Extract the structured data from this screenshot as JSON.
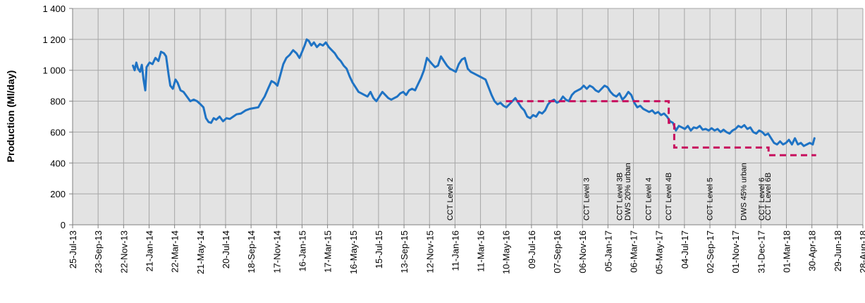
{
  "chart_data": {
    "type": "line",
    "title": "",
    "xlabel": "",
    "ylabel": "Production (Ml/day)",
    "ylim": [
      0,
      1400
    ],
    "xlim": [
      "2013-07-25",
      "2018-08-28"
    ],
    "grid": true,
    "y_ticks": [
      "0",
      "200",
      "400",
      "600",
      "800",
      "1 000",
      "1 200",
      "1 400"
    ],
    "x_ticks": [
      "25-Jul-13",
      "23-Sep-13",
      "22-Nov-13",
      "21-Jan-14",
      "22-Mar-14",
      "21-May-14",
      "20-Jul-14",
      "18-Sep-14",
      "17-Nov-14",
      "16-Jan-15",
      "17-Mar-15",
      "16-May-15",
      "15-Jul-15",
      "13-Sep-15",
      "12-Nov-15",
      "11-Jan-16",
      "11-Mar-16",
      "10-May-16",
      "09-Jul-16",
      "07-Sep-16",
      "06-Nov-16",
      "05-Jan-17",
      "06-Mar-17",
      "05-May-17",
      "04-Jul-17",
      "02-Sep-17",
      "01-Nov-17",
      "31-Dec-17",
      "01-Mar-18",
      "30-Apr-18",
      "29-Jun-18",
      "28-Aug-18"
    ],
    "colors": {
      "production": "#1f73c4",
      "target": "#c8105f",
      "plot_bg": "#e3e3e3",
      "grid": "#a6a6a6"
    },
    "series": [
      {
        "kind": "line",
        "points": [
          [
            "2013-12-14",
            1030
          ],
          [
            "2013-12-18",
            1000
          ],
          [
            "2013-12-22",
            1050
          ],
          [
            "2013-12-26",
            1010
          ],
          [
            "2013-12-31",
            990
          ],
          [
            "2014-01-04",
            1035
          ],
          [
            "2014-01-08",
            940
          ],
          [
            "2014-01-12",
            870
          ],
          [
            "2014-01-15",
            1020
          ],
          [
            "2014-01-22",
            1050
          ],
          [
            "2014-01-29",
            1040
          ],
          [
            "2014-02-05",
            1080
          ],
          [
            "2014-02-12",
            1060
          ],
          [
            "2014-02-18",
            1120
          ],
          [
            "2014-02-25",
            1110
          ],
          [
            "2014-03-02",
            1090
          ],
          [
            "2014-03-08",
            970
          ],
          [
            "2014-03-12",
            900
          ],
          [
            "2014-03-18",
            880
          ],
          [
            "2014-03-24",
            940
          ],
          [
            "2014-03-29",
            920
          ],
          [
            "2014-04-05",
            870
          ],
          [
            "2014-04-12",
            860
          ],
          [
            "2014-04-20",
            830
          ],
          [
            "2014-04-28",
            800
          ],
          [
            "2014-05-06",
            810
          ],
          [
            "2014-05-14",
            800
          ],
          [
            "2014-05-22",
            780
          ],
          [
            "2014-05-29",
            760
          ],
          [
            "2014-06-04",
            690
          ],
          [
            "2014-06-10",
            665
          ],
          [
            "2014-06-16",
            660
          ],
          [
            "2014-06-22",
            690
          ],
          [
            "2014-06-28",
            680
          ],
          [
            "2014-07-06",
            700
          ],
          [
            "2014-07-14",
            670
          ],
          [
            "2014-07-22",
            690
          ],
          [
            "2014-07-30",
            685
          ],
          [
            "2014-08-07",
            700
          ],
          [
            "2014-08-15",
            715
          ],
          [
            "2014-08-25",
            720
          ],
          [
            "2014-09-05",
            740
          ],
          [
            "2014-09-15",
            750
          ],
          [
            "2014-09-25",
            755
          ],
          [
            "2014-10-05",
            760
          ],
          [
            "2014-10-12",
            795
          ],
          [
            "2014-10-20",
            830
          ],
          [
            "2014-10-28",
            880
          ],
          [
            "2014-11-05",
            930
          ],
          [
            "2014-11-12",
            920
          ],
          [
            "2014-11-19",
            900
          ],
          [
            "2014-11-26",
            970
          ],
          [
            "2014-12-03",
            1040
          ],
          [
            "2014-12-10",
            1080
          ],
          [
            "2014-12-18",
            1100
          ],
          [
            "2014-12-26",
            1130
          ],
          [
            "2015-01-03",
            1110
          ],
          [
            "2015-01-10",
            1080
          ],
          [
            "2015-01-16",
            1120
          ],
          [
            "2015-01-22",
            1160
          ],
          [
            "2015-01-27",
            1200
          ],
          [
            "2015-02-01",
            1190
          ],
          [
            "2015-02-07",
            1160
          ],
          [
            "2015-02-13",
            1180
          ],
          [
            "2015-02-20",
            1150
          ],
          [
            "2015-02-27",
            1170
          ],
          [
            "2015-03-06",
            1160
          ],
          [
            "2015-03-13",
            1180
          ],
          [
            "2015-03-20",
            1150
          ],
          [
            "2015-03-27",
            1130
          ],
          [
            "2015-04-03",
            1110
          ],
          [
            "2015-04-10",
            1080
          ],
          [
            "2015-04-17",
            1060
          ],
          [
            "2015-04-24",
            1030
          ],
          [
            "2015-05-01",
            1010
          ],
          [
            "2015-05-08",
            960
          ],
          [
            "2015-05-15",
            920
          ],
          [
            "2015-05-22",
            890
          ],
          [
            "2015-05-29",
            860
          ],
          [
            "2015-06-05",
            850
          ],
          [
            "2015-06-12",
            840
          ],
          [
            "2015-06-19",
            830
          ],
          [
            "2015-06-26",
            860
          ],
          [
            "2015-07-03",
            820
          ],
          [
            "2015-07-10",
            800
          ],
          [
            "2015-07-17",
            830
          ],
          [
            "2015-07-24",
            860
          ],
          [
            "2015-07-31",
            840
          ],
          [
            "2015-08-07",
            820
          ],
          [
            "2015-08-14",
            810
          ],
          [
            "2015-08-21",
            820
          ],
          [
            "2015-08-28",
            830
          ],
          [
            "2015-09-04",
            850
          ],
          [
            "2015-09-11",
            860
          ],
          [
            "2015-09-18",
            840
          ],
          [
            "2015-09-25",
            870
          ],
          [
            "2015-10-02",
            880
          ],
          [
            "2015-10-09",
            870
          ],
          [
            "2015-10-16",
            910
          ],
          [
            "2015-10-23",
            950
          ],
          [
            "2015-10-30",
            1000
          ],
          [
            "2015-11-06",
            1080
          ],
          [
            "2015-11-12",
            1060
          ],
          [
            "2015-11-18",
            1040
          ],
          [
            "2015-11-25",
            1020
          ],
          [
            "2015-12-02",
            1030
          ],
          [
            "2015-12-09",
            1090
          ],
          [
            "2015-12-16",
            1060
          ],
          [
            "2015-12-23",
            1030
          ],
          [
            "2015-12-30",
            1010
          ],
          [
            "2016-01-06",
            1000
          ],
          [
            "2016-01-13",
            990
          ],
          [
            "2016-01-20",
            1040
          ],
          [
            "2016-01-27",
            1070
          ],
          [
            "2016-02-03",
            1080
          ],
          [
            "2016-02-10",
            1010
          ],
          [
            "2016-02-17",
            990
          ],
          [
            "2016-02-24",
            980
          ],
          [
            "2016-03-02",
            970
          ],
          [
            "2016-03-09",
            960
          ],
          [
            "2016-03-16",
            950
          ],
          [
            "2016-03-23",
            940
          ],
          [
            "2016-03-30",
            890
          ],
          [
            "2016-04-06",
            840
          ],
          [
            "2016-04-13",
            800
          ],
          [
            "2016-04-20",
            780
          ],
          [
            "2016-04-27",
            790
          ],
          [
            "2016-05-04",
            770
          ],
          [
            "2016-05-11",
            760
          ],
          [
            "2016-05-18",
            780
          ],
          [
            "2016-05-25",
            800
          ],
          [
            "2016-06-01",
            820
          ],
          [
            "2016-06-08",
            790
          ],
          [
            "2016-06-15",
            760
          ],
          [
            "2016-06-22",
            740
          ],
          [
            "2016-06-29",
            700
          ],
          [
            "2016-07-06",
            690
          ],
          [
            "2016-07-13",
            710
          ],
          [
            "2016-07-20",
            700
          ],
          [
            "2016-07-27",
            730
          ],
          [
            "2016-08-03",
            720
          ],
          [
            "2016-08-10",
            740
          ],
          [
            "2016-08-17",
            780
          ],
          [
            "2016-08-24",
            800
          ],
          [
            "2016-08-31",
            810
          ],
          [
            "2016-09-07",
            790
          ],
          [
            "2016-09-14",
            800
          ],
          [
            "2016-09-21",
            830
          ],
          [
            "2016-09-28",
            810
          ],
          [
            "2016-10-05",
            800
          ],
          [
            "2016-10-12",
            840
          ],
          [
            "2016-10-19",
            860
          ],
          [
            "2016-10-26",
            870
          ],
          [
            "2016-11-02",
            880
          ],
          [
            "2016-11-09",
            900
          ],
          [
            "2016-11-16",
            880
          ],
          [
            "2016-11-23",
            900
          ],
          [
            "2016-11-30",
            890
          ],
          [
            "2016-12-07",
            870
          ],
          [
            "2016-12-14",
            860
          ],
          [
            "2016-12-21",
            880
          ],
          [
            "2016-12-28",
            900
          ],
          [
            "2017-01-04",
            890
          ],
          [
            "2017-01-11",
            860
          ],
          [
            "2017-01-18",
            840
          ],
          [
            "2017-01-25",
            830
          ],
          [
            "2017-02-01",
            850
          ],
          [
            "2017-02-08",
            810
          ],
          [
            "2017-02-15",
            830
          ],
          [
            "2017-02-22",
            860
          ],
          [
            "2017-03-01",
            840
          ],
          [
            "2017-03-08",
            790
          ],
          [
            "2017-03-15",
            760
          ],
          [
            "2017-03-22",
            770
          ],
          [
            "2017-03-29",
            750
          ],
          [
            "2017-04-05",
            740
          ],
          [
            "2017-04-12",
            730
          ],
          [
            "2017-04-19",
            740
          ],
          [
            "2017-04-26",
            720
          ],
          [
            "2017-05-03",
            730
          ],
          [
            "2017-05-10",
            710
          ],
          [
            "2017-05-17",
            720
          ],
          [
            "2017-05-24",
            700
          ],
          [
            "2017-05-31",
            670
          ],
          [
            "2017-06-07",
            660
          ],
          [
            "2017-06-14",
            610
          ],
          [
            "2017-06-21",
            640
          ],
          [
            "2017-06-28",
            630
          ],
          [
            "2017-07-05",
            620
          ],
          [
            "2017-07-12",
            640
          ],
          [
            "2017-07-19",
            610
          ],
          [
            "2017-07-26",
            630
          ],
          [
            "2017-08-02",
            625
          ],
          [
            "2017-08-09",
            640
          ],
          [
            "2017-08-16",
            615
          ],
          [
            "2017-08-23",
            620
          ],
          [
            "2017-08-30",
            610
          ],
          [
            "2017-09-06",
            625
          ],
          [
            "2017-09-13",
            610
          ],
          [
            "2017-09-20",
            620
          ],
          [
            "2017-09-27",
            600
          ],
          [
            "2017-10-04",
            615
          ],
          [
            "2017-10-11",
            600
          ],
          [
            "2017-10-18",
            590
          ],
          [
            "2017-10-25",
            610
          ],
          [
            "2017-11-01",
            620
          ],
          [
            "2017-11-08",
            640
          ],
          [
            "2017-11-15",
            630
          ],
          [
            "2017-11-22",
            645
          ],
          [
            "2017-11-29",
            620
          ],
          [
            "2017-12-06",
            630
          ],
          [
            "2017-12-13",
            600
          ],
          [
            "2017-12-20",
            590
          ],
          [
            "2017-12-27",
            610
          ],
          [
            "2018-01-03",
            600
          ],
          [
            "2018-01-10",
            580
          ],
          [
            "2018-01-17",
            590
          ],
          [
            "2018-01-24",
            560
          ],
          [
            "2018-01-31",
            530
          ],
          [
            "2018-02-07",
            520
          ],
          [
            "2018-02-14",
            540
          ],
          [
            "2018-02-21",
            520
          ],
          [
            "2018-02-28",
            530
          ],
          [
            "2018-03-07",
            550
          ],
          [
            "2018-03-14",
            520
          ],
          [
            "2018-03-21",
            560
          ],
          [
            "2018-03-28",
            520
          ],
          [
            "2018-04-04",
            530
          ],
          [
            "2018-04-11",
            510
          ],
          [
            "2018-04-18",
            520
          ],
          [
            "2018-04-25",
            530
          ],
          [
            "2018-05-02",
            520
          ],
          [
            "2018-05-06",
            560
          ]
        ]
      },
      {
        "kind": "step-dashed",
        "points": [
          [
            "2016-05-10",
            800
          ],
          [
            "2017-05-28",
            800
          ],
          [
            "2017-05-28",
            660
          ],
          [
            "2017-06-10",
            660
          ],
          [
            "2017-06-10",
            500
          ],
          [
            "2018-01-18",
            500
          ],
          [
            "2018-01-18",
            450
          ],
          [
            "2018-05-10",
            450
          ]
        ]
      }
    ],
    "annotations": [
      {
        "text": "CCT Level 2",
        "x": "2015-12-30"
      },
      {
        "text": "CCT Level 3",
        "x": "2016-11-15"
      },
      {
        "text": "CCT Level 3B",
        "x": "2017-02-01"
      },
      {
        "text": "DWS 20% urban",
        "x": "2017-02-20"
      },
      {
        "text": "CCT Level 4",
        "x": "2017-04-10"
      },
      {
        "text": "CCT Level 4B",
        "x": "2017-05-27"
      },
      {
        "text": "CCT Level 5",
        "x": "2017-09-01"
      },
      {
        "text": "DWS 45% urban",
        "x": "2017-11-20"
      },
      {
        "text": "CCT Level 6",
        "x": "2018-01-01"
      },
      {
        "text": "CCT Level 6B",
        "x": "2018-01-16"
      }
    ]
  }
}
